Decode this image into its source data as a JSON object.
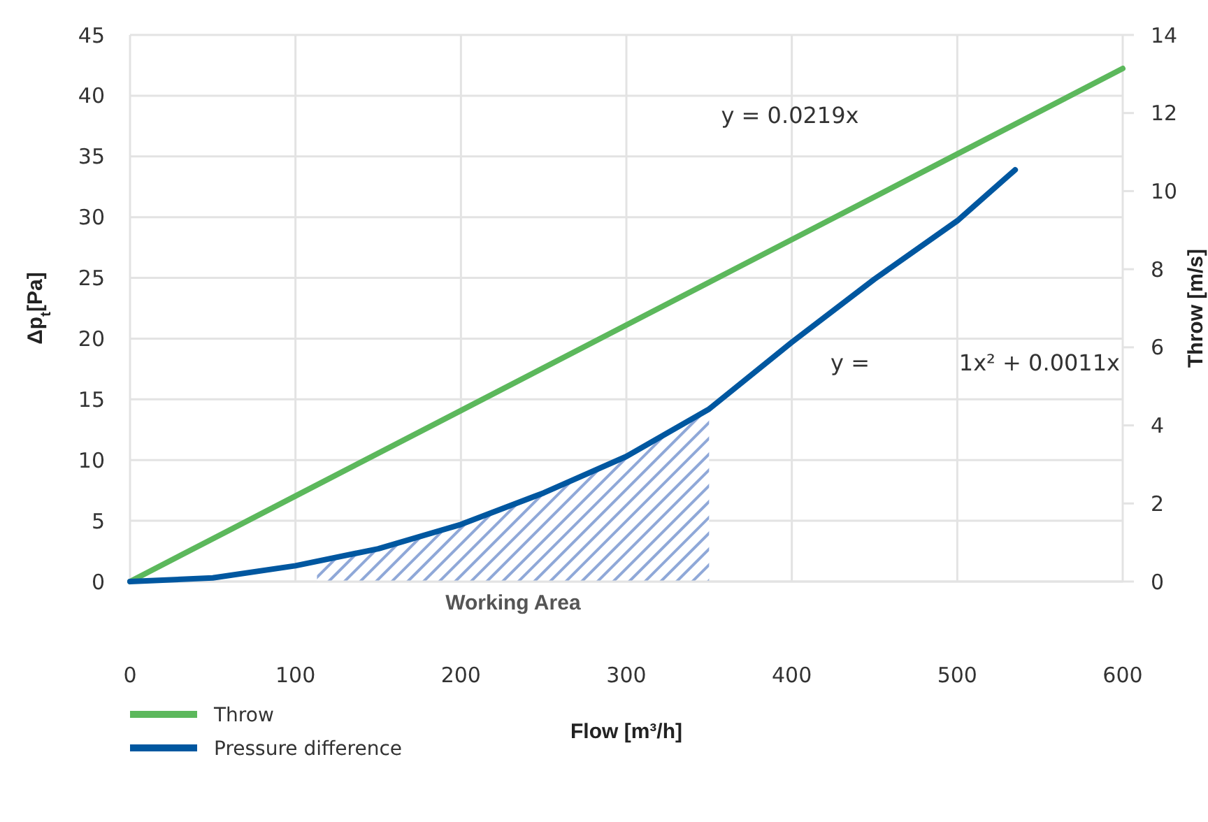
{
  "chart_data": {
    "type": "line",
    "xlabel": "Flow [m³/h]",
    "ylabel": "Δp$_{t}$[Pa]",
    "y2label": "Throw [m/s]",
    "xlim": [
      0,
      600
    ],
    "xticks": [
      0,
      100,
      200,
      300,
      400,
      500,
      600
    ],
    "ylim": [
      0,
      45
    ],
    "yticks": [
      0,
      5,
      10,
      15,
      20,
      25,
      30,
      35,
      40,
      45
    ],
    "y2lim": [
      0,
      14
    ],
    "y2ticks": [
      0,
      2,
      4,
      6,
      8,
      10,
      12,
      14
    ],
    "grid": true,
    "legend": "bottom left",
    "marker": "none",
    "line_style": "solid",
    "series": [
      {
        "name": "Throw",
        "color": "#5cb85c",
        "axis": "y2",
        "x": [
          0,
          100,
          200,
          300,
          400,
          500,
          600
        ],
        "values": [
          0,
          2.19,
          4.38,
          6.57,
          8.76,
          10.95,
          13.14
        ]
      },
      {
        "name": "Pressure difference",
        "color": "#0057a0",
        "x": [
          0,
          50,
          100,
          150,
          200,
          250,
          300,
          350,
          400,
          450,
          500,
          535
        ],
        "values": [
          0,
          0.3,
          1.3,
          2.7,
          4.7,
          7.3,
          10.3,
          14.2,
          19.7,
          24.9,
          29.7,
          33.9
        ]
      }
    ],
    "bands": [
      {
        "axis": "x",
        "from": 113,
        "to": 350,
        "label": "Working Area",
        "color": "#8fa8d8"
      }
    ],
    "annotations": [
      "y = 0.0219x",
      "y =",
      "1x² + 0.0011x"
    ]
  }
}
